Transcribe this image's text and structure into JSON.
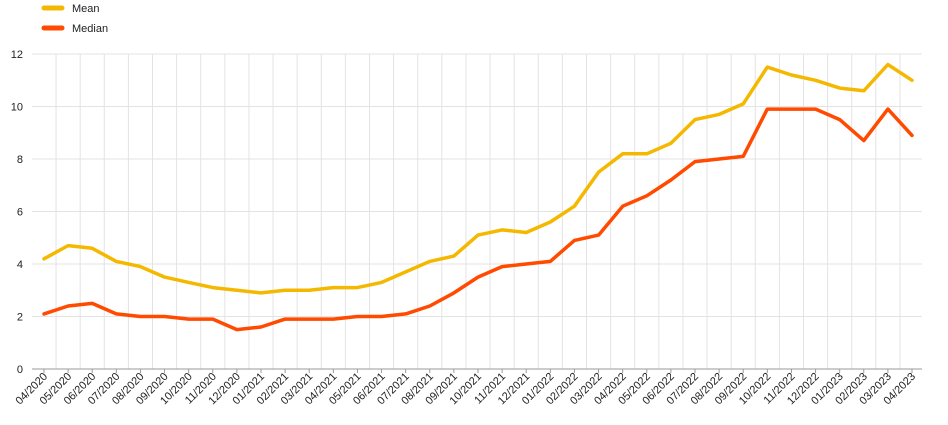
{
  "chart_data": {
    "type": "line",
    "categories": [
      "04/2020",
      "05/2020",
      "06/2020",
      "07/2020",
      "08/2020",
      "09/2020",
      "10/2020",
      "11/2020",
      "12/2020",
      "01/2021",
      "02/2021",
      "03/2021",
      "04/2021",
      "05/2021",
      "06/2021",
      "07/2021",
      "08/2021",
      "09/2021",
      "10/2021",
      "11/2021",
      "12/2021",
      "01/2022",
      "02/2022",
      "03/2022",
      "04/2022",
      "05/2022",
      "06/2022",
      "07/2022",
      "08/2022",
      "09/2022",
      "10/2022",
      "11/2022",
      "12/2022",
      "01/2023",
      "02/2023",
      "03/2023",
      "04/2023"
    ],
    "series": [
      {
        "name": "Mean",
        "color": "#f5b800",
        "values": [
          4.2,
          4.7,
          4.6,
          4.1,
          3.9,
          3.5,
          3.3,
          3.1,
          3.0,
          2.9,
          3.0,
          3.0,
          3.1,
          3.1,
          3.3,
          3.7,
          4.1,
          4.3,
          5.1,
          5.3,
          5.2,
          5.6,
          6.2,
          7.5,
          8.2,
          8.2,
          8.6,
          9.5,
          9.7,
          10.1,
          11.5,
          11.2,
          11.0,
          10.7,
          10.6,
          11.6,
          11.0
        ]
      },
      {
        "name": "Median",
        "color": "#ff4a00",
        "values": [
          2.1,
          2.4,
          2.5,
          2.1,
          2.0,
          2.0,
          1.9,
          1.9,
          1.5,
          1.6,
          1.9,
          1.9,
          1.9,
          2.0,
          2.0,
          2.1,
          2.4,
          2.9,
          3.5,
          3.9,
          4.0,
          4.1,
          4.9,
          5.1,
          6.2,
          6.6,
          7.2,
          7.9,
          8.0,
          8.1,
          9.9,
          9.9,
          9.9,
          9.5,
          8.7,
          9.9,
          8.9
        ]
      }
    ],
    "yticks": [
      0,
      2,
      4,
      6,
      8,
      10,
      12
    ],
    "ylim": [
      0,
      12
    ],
    "title": "",
    "xlabel": "",
    "ylabel": "",
    "grid": true,
    "legend_position": "top-left"
  }
}
